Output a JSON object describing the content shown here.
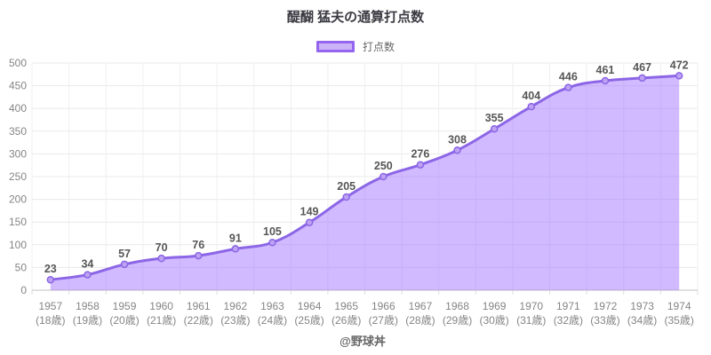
{
  "chart": {
    "title": "醍醐 猛夫の通算打点数",
    "legend_label": "打点数",
    "watermark": "@野球丼"
  },
  "chart_data": {
    "type": "area",
    "title": "醍醐 猛夫の通算打点数",
    "series_name": "打点数",
    "categories": [
      "1957",
      "1958",
      "1959",
      "1960",
      "1961",
      "1962",
      "1963",
      "1964",
      "1965",
      "1966",
      "1967",
      "1968",
      "1969",
      "1970",
      "1971",
      "1972",
      "1973",
      "1974"
    ],
    "categories_sub": [
      "(18歳)",
      "(19歳)",
      "(20歳)",
      "(21歳)",
      "(22歳)",
      "(23歳)",
      "(24歳)",
      "(25歳)",
      "(26歳)",
      "(27歳)",
      "(28歳)",
      "(29歳)",
      "(30歳)",
      "(31歳)",
      "(32歳)",
      "(33歳)",
      "(34歳)",
      "(35歳)"
    ],
    "values": [
      23,
      34,
      57,
      70,
      76,
      91,
      105,
      149,
      205,
      250,
      276,
      308,
      355,
      404,
      446,
      461,
      467,
      472
    ],
    "xlabel": "",
    "ylabel": "",
    "ylim": [
      0,
      500
    ],
    "y_ticks": [
      0,
      50,
      100,
      150,
      200,
      250,
      300,
      350,
      400,
      450,
      500
    ],
    "grid": true,
    "legend_position": "top",
    "annotation": "@野球丼",
    "colors": {
      "line": "#8c66e6",
      "fill": "rgba(153,102,255,0.45)",
      "point_fill": "#bda2f2",
      "point_stroke": "#8c66e6",
      "data_label": "#565656",
      "axis_text": "#858585",
      "grid_line": "#e9e9e9",
      "axis_line": "#cfcfcf",
      "tick_mark": "#dedede"
    }
  }
}
